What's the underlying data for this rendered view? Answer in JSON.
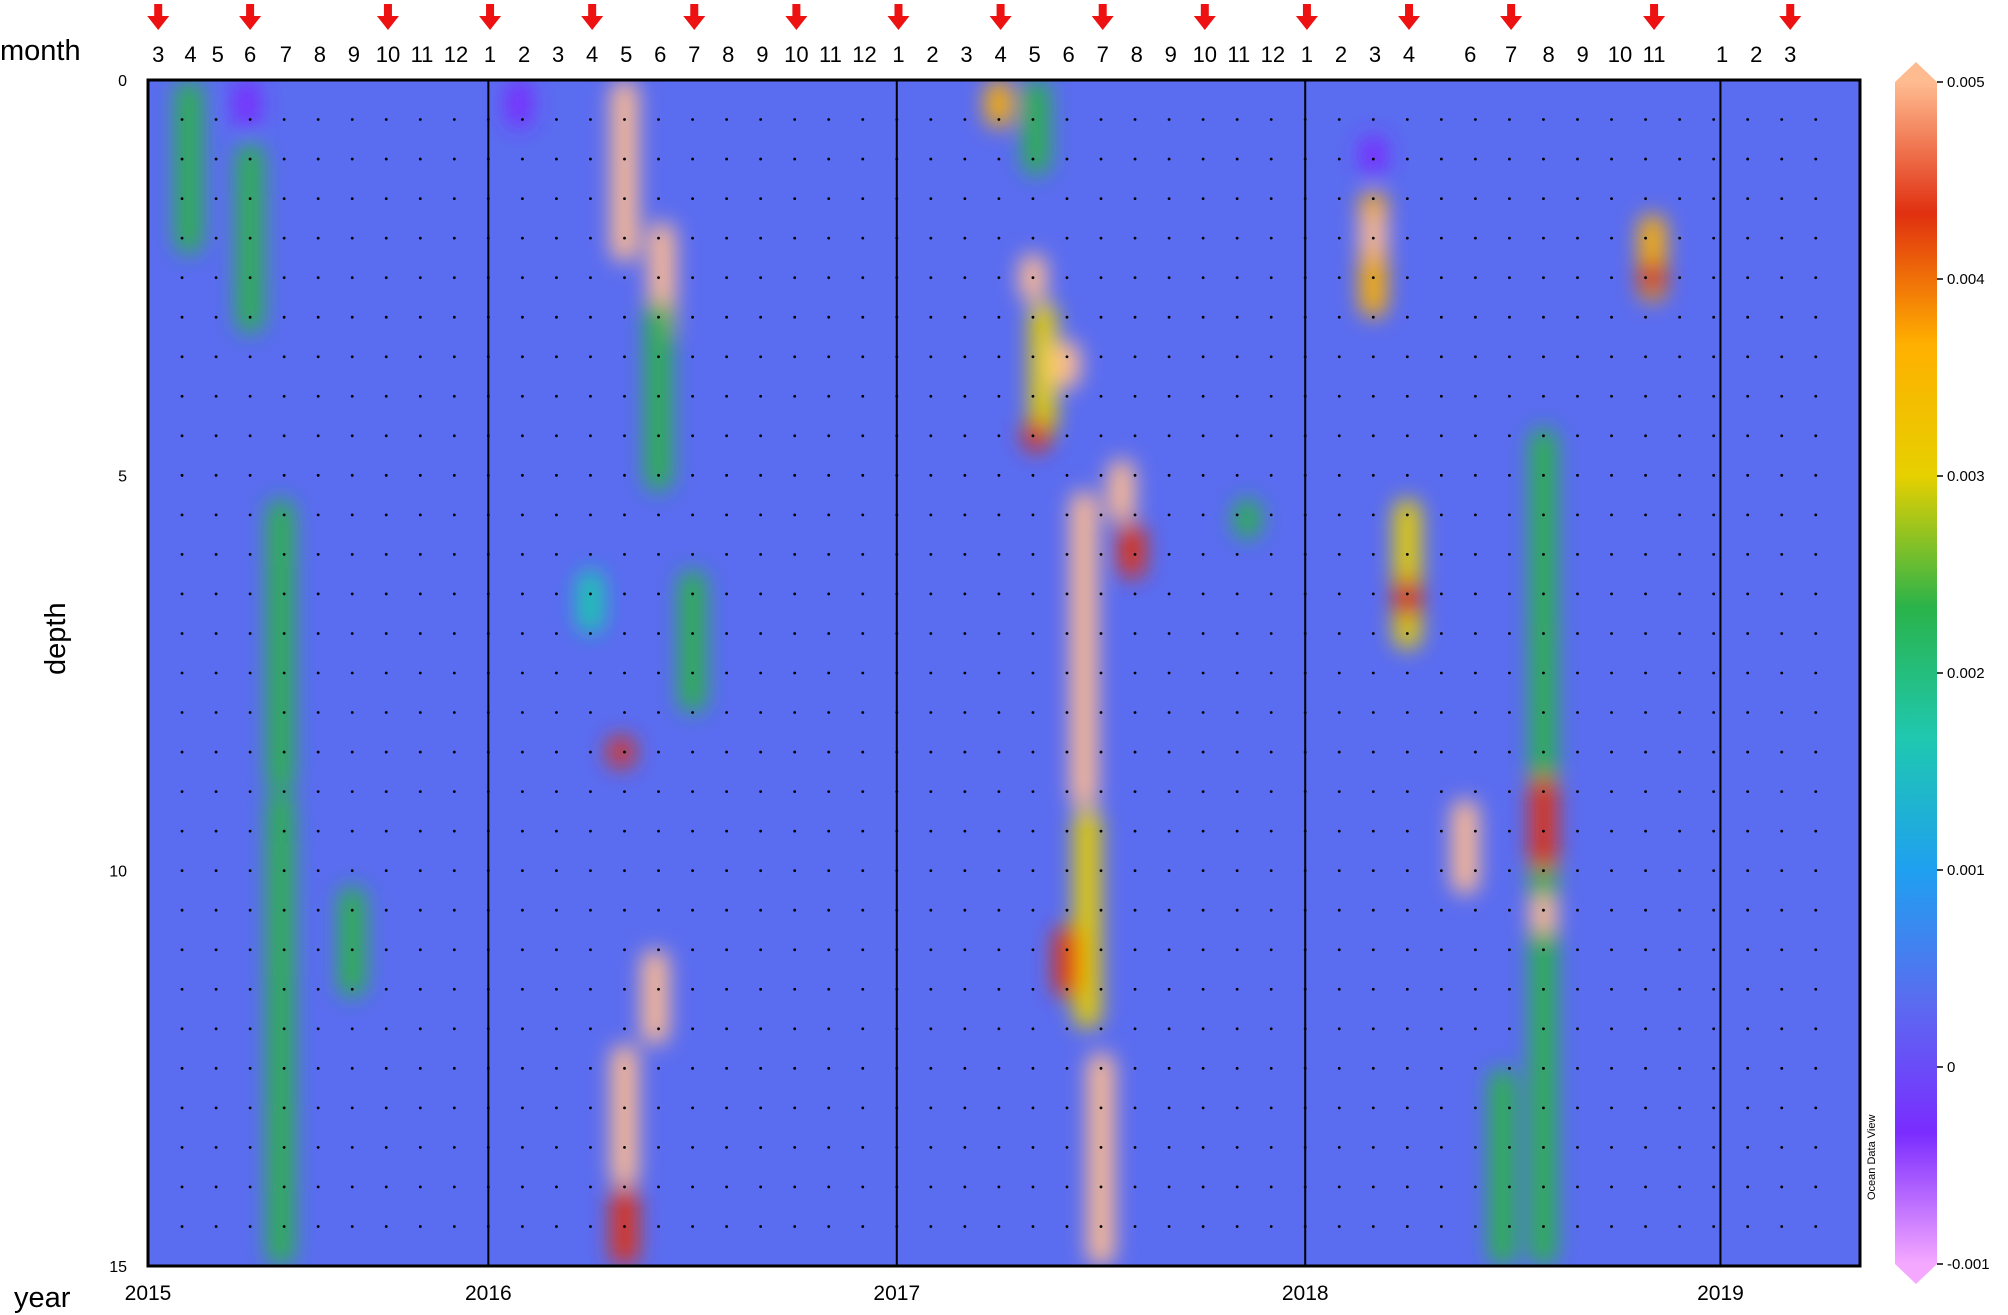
{
  "labels": {
    "month": "month",
    "year": "year",
    "depth": "depth",
    "watermark": "Ocean Data View"
  },
  "chart_data": {
    "type": "heatmap",
    "title": "",
    "xlabel": "year",
    "ylabel": "depth",
    "x_range": [
      "2015-01",
      "2019-03"
    ],
    "y_range": [
      0,
      15
    ],
    "y_inverted": true,
    "y_ticks": [
      0,
      5,
      10,
      15
    ],
    "year_ticks": [
      "2015",
      "2016",
      "2017",
      "2018",
      "2019"
    ],
    "month_ticks": [
      {
        "label": "3",
        "pos": 0.25,
        "arrow": true
      },
      {
        "label": "4",
        "pos": 1.2
      },
      {
        "label": "5",
        "pos": 2.0
      },
      {
        "label": "6",
        "pos": 2.95,
        "arrow": true
      },
      {
        "label": "7",
        "pos": 4.0
      },
      {
        "label": "8",
        "pos": 5.0
      },
      {
        "label": "9",
        "pos": 6.0
      },
      {
        "label": "10",
        "pos": 7.0,
        "arrow": true
      },
      {
        "label": "11",
        "pos": 8.0
      },
      {
        "label": "12",
        "pos": 9.0
      },
      {
        "label": "1",
        "pos": 10.0,
        "arrow": true
      },
      {
        "label": "2",
        "pos": 11.0
      },
      {
        "label": "3",
        "pos": 12.0
      },
      {
        "label": "4",
        "pos": 13.0,
        "arrow": true
      },
      {
        "label": "5",
        "pos": 14.0
      },
      {
        "label": "6",
        "pos": 15.0
      },
      {
        "label": "7",
        "pos": 16.0,
        "arrow": true
      },
      {
        "label": "8",
        "pos": 17.0
      },
      {
        "label": "9",
        "pos": 18.0
      },
      {
        "label": "10",
        "pos": 19.0,
        "arrow": true
      },
      {
        "label": "11",
        "pos": 20.0
      },
      {
        "label": "12",
        "pos": 21.0
      },
      {
        "label": "1",
        "pos": 22.0,
        "arrow": true
      },
      {
        "label": "2",
        "pos": 23.0
      },
      {
        "label": "3",
        "pos": 24.0
      },
      {
        "label": "4",
        "pos": 25.0,
        "arrow": true
      },
      {
        "label": "5",
        "pos": 26.0
      },
      {
        "label": "6",
        "pos": 27.0
      },
      {
        "label": "7",
        "pos": 28.0,
        "arrow": true
      },
      {
        "label": "8",
        "pos": 29.0
      },
      {
        "label": "9",
        "pos": 30.0
      },
      {
        "label": "10",
        "pos": 31.0,
        "arrow": true
      },
      {
        "label": "11",
        "pos": 32.0
      },
      {
        "label": "12",
        "pos": 33.0
      },
      {
        "label": "1",
        "pos": 34.0,
        "arrow": true
      },
      {
        "label": "2",
        "pos": 35.0
      },
      {
        "label": "3",
        "pos": 36.0
      },
      {
        "label": "4",
        "pos": 37.0,
        "arrow": true
      },
      {
        "label": "6",
        "pos": 38.8
      },
      {
        "label": "7",
        "pos": 40.0,
        "arrow": true
      },
      {
        "label": "8",
        "pos": 41.1
      },
      {
        "label": "9",
        "pos": 42.1
      },
      {
        "label": "10",
        "pos": 43.2
      },
      {
        "label": "11",
        "pos": 44.2,
        "arrow": true
      },
      {
        "label": "1",
        "pos": 46.2
      },
      {
        "label": "2",
        "pos": 47.2
      },
      {
        "label": "3",
        "pos": 48.2,
        "arrow": true
      }
    ],
    "colorbar": {
      "min": -0.001,
      "max": 0.005,
      "ticks": [
        "0.005",
        "0.004",
        "0.003",
        "0.002",
        "0.001",
        "0",
        "-0.001"
      ],
      "colors": [
        "#f5a8ff",
        "#7a2cff",
        "#5a6cf0",
        "#1fa0f0",
        "#1fc8b0",
        "#2ab34a",
        "#e6d000",
        "#ffb000",
        "#e03010",
        "#ffbb90"
      ]
    },
    "background_value": 0.0004,
    "features": [
      {
        "x": 1.2,
        "y0": 0.0,
        "y1": 2.2,
        "value": 0.0022
      },
      {
        "x": 2.9,
        "y0": 0.0,
        "y1": 0.6,
        "value": -0.0006
      },
      {
        "x": 3.0,
        "y0": 1.3,
        "y1": 2.7,
        "value": 0.005
      },
      {
        "x": 3.0,
        "y0": 0.8,
        "y1": 3.2,
        "value": 0.0022
      },
      {
        "x": 3.9,
        "y0": 5.4,
        "y1": 6.3,
        "value": 0.005
      },
      {
        "x": 3.9,
        "y0": 5.3,
        "y1": 9.0,
        "value": 0.0022
      },
      {
        "x": 3.9,
        "y0": 9.5,
        "y1": 11.5,
        "value": 0.003
      },
      {
        "x": 3.9,
        "y0": 12.8,
        "y1": 14.2,
        "value": 0.0042
      },
      {
        "x": 3.9,
        "y0": 9.0,
        "y1": 15.0,
        "value": 0.0024
      },
      {
        "x": 6.0,
        "y0": 10.2,
        "y1": 11.6,
        "value": 0.0021
      },
      {
        "x": 10.9,
        "y0": 0.0,
        "y1": 0.6,
        "value": -0.0006
      },
      {
        "x": 14.0,
        "y0": 0.0,
        "y1": 2.3,
        "value": 0.005
      },
      {
        "x": 15.1,
        "y0": 1.8,
        "y1": 3.3,
        "value": 0.005
      },
      {
        "x": 15.0,
        "y0": 2.8,
        "y1": 5.2,
        "value": 0.0024
      },
      {
        "x": 16.0,
        "y0": 6.2,
        "y1": 8.0,
        "value": 0.0022
      },
      {
        "x": 13.0,
        "y0": 6.2,
        "y1": 7.0,
        "value": 0.0019
      },
      {
        "x": 13.9,
        "y0": 8.3,
        "y1": 8.7,
        "value": 0.0042
      },
      {
        "x": 14.9,
        "y0": 11.0,
        "y1": 12.2,
        "value": 0.005
      },
      {
        "x": 14.0,
        "y0": 12.2,
        "y1": 14.0,
        "value": 0.005
      },
      {
        "x": 14.0,
        "y0": 14.0,
        "y1": 15.0,
        "value": 0.004
      },
      {
        "x": 25.0,
        "y0": 0.0,
        "y1": 0.6,
        "value": 0.0035
      },
      {
        "x": 26.1,
        "y0": 0.0,
        "y1": 1.2,
        "value": 0.0025
      },
      {
        "x": 26.0,
        "y0": 2.2,
        "y1": 2.8,
        "value": 0.005
      },
      {
        "x": 26.3,
        "y0": 2.8,
        "y1": 4.5,
        "value": 0.003
      },
      {
        "x": 27.0,
        "y0": 3.3,
        "y1": 3.9,
        "value": 0.005
      },
      {
        "x": 26.1,
        "y0": 4.3,
        "y1": 4.7,
        "value": 0.0042
      },
      {
        "x": 27.5,
        "y0": 5.2,
        "y1": 9.2,
        "value": 0.005
      },
      {
        "x": 28.6,
        "y0": 4.8,
        "y1": 5.6,
        "value": 0.005
      },
      {
        "x": 28.9,
        "y0": 5.6,
        "y1": 6.3,
        "value": 0.0045
      },
      {
        "x": 27.6,
        "y0": 9.2,
        "y1": 12.0,
        "value": 0.0028
      },
      {
        "x": 27.0,
        "y0": 10.7,
        "y1": 11.6,
        "value": 0.0042
      },
      {
        "x": 28.0,
        "y0": 12.3,
        "y1": 15.0,
        "value": 0.005
      },
      {
        "x": 32.3,
        "y0": 5.3,
        "y1": 5.8,
        "value": 0.0021
      },
      {
        "x": 36.0,
        "y0": 1.4,
        "y1": 3.0,
        "value": 0.0035
      },
      {
        "x": 36.0,
        "y0": 1.7,
        "y1": 2.2,
        "value": 0.005
      },
      {
        "x": 36.0,
        "y0": 0.7,
        "y1": 1.2,
        "value": -0.0006
      },
      {
        "x": 37.0,
        "y0": 5.3,
        "y1": 7.2,
        "value": 0.003
      },
      {
        "x": 37.0,
        "y0": 6.3,
        "y1": 6.8,
        "value": 0.0042
      },
      {
        "x": 38.7,
        "y0": 9.1,
        "y1": 10.3,
        "value": 0.005
      },
      {
        "x": 39.8,
        "y0": 12.5,
        "y1": 15.0,
        "value": 0.0021
      },
      {
        "x": 41.0,
        "y0": 4.8,
        "y1": 5.2,
        "value": 0.005
      },
      {
        "x": 41.0,
        "y0": 6.7,
        "y1": 7.3,
        "value": 0.005
      },
      {
        "x": 41.0,
        "y0": 4.4,
        "y1": 15.0,
        "value": 0.0026
      },
      {
        "x": 41.0,
        "y0": 8.8,
        "y1": 10.0,
        "value": 0.0042
      },
      {
        "x": 41.0,
        "y0": 10.3,
        "y1": 10.8,
        "value": 0.005
      },
      {
        "x": 44.2,
        "y0": 1.7,
        "y1": 2.8,
        "value": 0.0038
      },
      {
        "x": 44.2,
        "y0": 2.3,
        "y1": 2.7,
        "value": 0.0042
      }
    ]
  }
}
